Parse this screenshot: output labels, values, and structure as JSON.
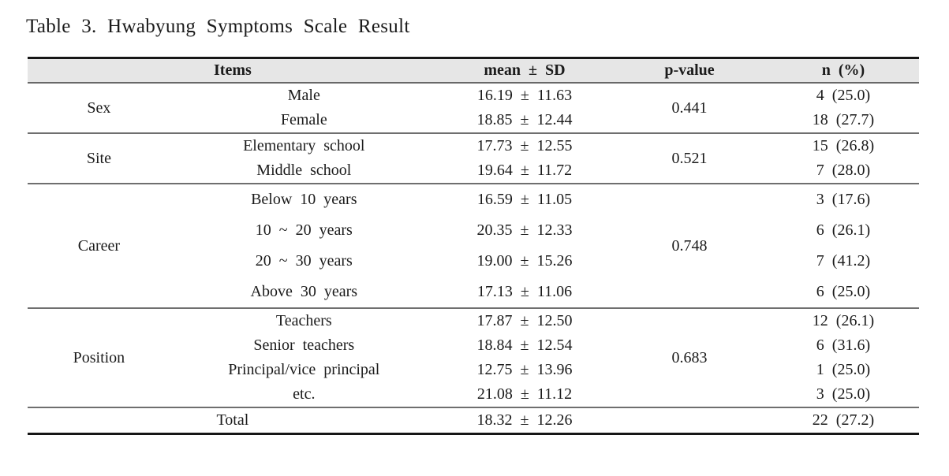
{
  "title": "Table 3. Hwabyung Symptoms Scale Result",
  "table": {
    "headers": {
      "items": "Items",
      "mean_sd": "mean ± SD",
      "p_value": "p-value",
      "n_pct": "n (%)"
    },
    "groups": [
      {
        "label": "Sex",
        "p_value": "0.441",
        "rows": [
          {
            "item": "Male",
            "mean_sd": "16.19 ± 11.63",
            "n_pct": "4 (25.0)"
          },
          {
            "item": "Female",
            "mean_sd": "18.85 ± 12.44",
            "n_pct": "18 (27.7)"
          }
        ]
      },
      {
        "label": "Site",
        "p_value": "0.521",
        "rows": [
          {
            "item": "Elementary school",
            "mean_sd": "17.73 ± 12.55",
            "n_pct": "15 (26.8)"
          },
          {
            "item": "Middle school",
            "mean_sd": "19.64 ± 11.72",
            "n_pct": "7 (28.0)"
          }
        ]
      },
      {
        "label": "Career",
        "p_value": "0.748",
        "rows": [
          {
            "item": "Below 10 years",
            "mean_sd": "16.59 ± 11.05",
            "n_pct": "3 (17.6)"
          },
          {
            "item": "10 ~ 20 years",
            "mean_sd": "20.35 ± 12.33",
            "n_pct": "6 (26.1)"
          },
          {
            "item": "20 ~ 30 years",
            "mean_sd": "19.00 ± 15.26",
            "n_pct": "7 (41.2)"
          },
          {
            "item": "Above 30 years",
            "mean_sd": "17.13 ± 11.06",
            "n_pct": "6 (25.0)"
          }
        ]
      },
      {
        "label": "Position",
        "p_value": "0.683",
        "rows": [
          {
            "item": "Teachers",
            "mean_sd": "17.87 ± 12.50",
            "n_pct": "12 (26.1)"
          },
          {
            "item": "Senior teachers",
            "mean_sd": "18.84 ± 12.54",
            "n_pct": "6 (31.6)"
          },
          {
            "item": "Principal/vice principal",
            "mean_sd": "12.75 ± 13.96",
            "n_pct": "1 (25.0)"
          },
          {
            "item": "etc.",
            "mean_sd": "21.08 ± 11.12",
            "n_pct": "3 (25.0)"
          }
        ]
      }
    ],
    "total": {
      "label": "Total",
      "mean_sd": "18.32 ± 12.26",
      "p_value": "",
      "n_pct": "22 (27.2)"
    }
  },
  "colors": {
    "header_bg": "#e6e6e6",
    "border_strong": "#161616",
    "border_light": "#6f6f6f",
    "text": "#1b1b1b"
  }
}
